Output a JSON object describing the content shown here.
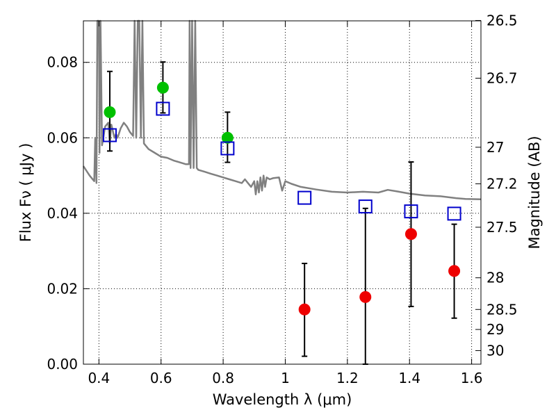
{
  "chart_data": {
    "type": "scatter",
    "title": "",
    "xlabel": "Wavelength  λ (μm)",
    "ylabel": "Flux  Fν  ( μJy )",
    "ylabel_right": "Magnitude (AB)",
    "xlim": [
      0.35,
      1.63
    ],
    "ylim": [
      0.0,
      0.091
    ],
    "grid": true,
    "x_ticks": [
      0.4,
      0.6,
      0.8,
      1.0,
      1.2,
      1.4,
      1.6
    ],
    "x_tick_labels": [
      "0.4",
      "0.6",
      "0.8",
      "1",
      "1.2",
      "1.4",
      "1.6"
    ],
    "y_ticks": [
      0.0,
      0.02,
      0.04,
      0.06,
      0.08
    ],
    "y_tick_labels": [
      "0.00",
      "0.02",
      "0.04",
      "0.06",
      "0.08"
    ],
    "right_ticks": [
      {
        "label": "26.5",
        "flux": 0.0911
      },
      {
        "label": "26.7",
        "flux": 0.0758
      },
      {
        "label": "27",
        "flux": 0.0575
      },
      {
        "label": "27.2",
        "flux": 0.0478
      },
      {
        "label": "27.5",
        "flux": 0.0363
      },
      {
        "label": "28",
        "flux": 0.0229
      },
      {
        "label": "28.5",
        "flux": 0.0145
      },
      {
        "label": "29",
        "flux": 0.0092
      },
      {
        "label": "30",
        "flux": 0.0036
      }
    ],
    "colors": {
      "green": "#00c000",
      "red": "#ee0000",
      "blue": "#0000cc",
      "sed": "#808080",
      "errorbar": "#000000"
    },
    "series": [
      {
        "marker": "circle-green",
        "points": [
          {
            "x": 0.435,
            "y": 0.0668,
            "yerr_low": 0.0565,
            "yerr_high": 0.0776
          },
          {
            "x": 0.606,
            "y": 0.0733,
            "yerr_low": 0.0666,
            "yerr_high": 0.0801
          },
          {
            "x": 0.814,
            "y": 0.06,
            "yerr_low": 0.0535,
            "yerr_high": 0.0668
          }
        ]
      },
      {
        "marker": "circle-red",
        "points": [
          {
            "x": 1.062,
            "y": 0.0145,
            "yerr_low": 0.0021,
            "yerr_high": 0.0267
          },
          {
            "x": 1.258,
            "y": 0.0178,
            "yerr_low": 0.0,
            "yerr_high": 0.0413
          },
          {
            "x": 1.405,
            "y": 0.0345,
            "yerr_low": 0.0153,
            "yerr_high": 0.0536
          },
          {
            "x": 1.544,
            "y": 0.0247,
            "yerr_low": 0.0122,
            "yerr_high": 0.0371
          }
        ]
      },
      {
        "marker": "square-blue",
        "points": [
          {
            "x": 0.435,
            "y": 0.0607
          },
          {
            "x": 0.606,
            "y": 0.0677
          },
          {
            "x": 0.814,
            "y": 0.0572
          },
          {
            "x": 1.062,
            "y": 0.0441
          },
          {
            "x": 1.258,
            "y": 0.0418
          },
          {
            "x": 1.405,
            "y": 0.0405
          },
          {
            "x": 1.544,
            "y": 0.0399
          }
        ]
      },
      {
        "marker": "line-gray",
        "points": [
          [
            0.35,
            0.0525
          ],
          [
            0.37,
            0.05
          ],
          [
            0.385,
            0.0485
          ],
          [
            0.388,
            0.06
          ],
          [
            0.392,
            0.048
          ],
          [
            0.395,
            0.091
          ],
          [
            0.4,
            0.091
          ],
          [
            0.402,
            0.056
          ],
          [
            0.405,
            0.091
          ],
          [
            0.41,
            0.058
          ],
          [
            0.42,
            0.063
          ],
          [
            0.43,
            0.064
          ],
          [
            0.435,
            0.0585
          ],
          [
            0.44,
            0.0635
          ],
          [
            0.45,
            0.06
          ],
          [
            0.455,
            0.061
          ],
          [
            0.46,
            0.06
          ],
          [
            0.47,
            0.0625
          ],
          [
            0.48,
            0.064
          ],
          [
            0.49,
            0.063
          ],
          [
            0.5,
            0.0615
          ],
          [
            0.51,
            0.0605
          ],
          [
            0.515,
            0.091
          ],
          [
            0.52,
            0.06
          ],
          [
            0.525,
            0.091
          ],
          [
            0.53,
            0.091
          ],
          [
            0.535,
            0.06
          ],
          [
            0.54,
            0.091
          ],
          [
            0.545,
            0.0585
          ],
          [
            0.56,
            0.057
          ],
          [
            0.58,
            0.056
          ],
          [
            0.6,
            0.055
          ],
          [
            0.62,
            0.0547
          ],
          [
            0.64,
            0.054
          ],
          [
            0.66,
            0.0535
          ],
          [
            0.68,
            0.053
          ],
          [
            0.69,
            0.053
          ],
          [
            0.692,
            0.091
          ],
          [
            0.695,
            0.052
          ],
          [
            0.7,
            0.091
          ],
          [
            0.705,
            0.052
          ],
          [
            0.71,
            0.091
          ],
          [
            0.715,
            0.052
          ],
          [
            0.72,
            0.0515
          ],
          [
            0.74,
            0.051
          ],
          [
            0.76,
            0.0505
          ],
          [
            0.78,
            0.05
          ],
          [
            0.8,
            0.0495
          ],
          [
            0.82,
            0.049
          ],
          [
            0.84,
            0.0485
          ],
          [
            0.86,
            0.048
          ],
          [
            0.87,
            0.049
          ],
          [
            0.88,
            0.048
          ],
          [
            0.89,
            0.047
          ],
          [
            0.9,
            0.0485
          ],
          [
            0.905,
            0.045
          ],
          [
            0.91,
            0.0485
          ],
          [
            0.915,
            0.0455
          ],
          [
            0.92,
            0.0495
          ],
          [
            0.925,
            0.046
          ],
          [
            0.93,
            0.05
          ],
          [
            0.935,
            0.047
          ],
          [
            0.94,
            0.0495
          ],
          [
            0.95,
            0.049
          ],
          [
            0.96,
            0.0493
          ],
          [
            0.98,
            0.0495
          ],
          [
            0.99,
            0.046
          ],
          [
            1.0,
            0.0485
          ],
          [
            1.02,
            0.0478
          ],
          [
            1.05,
            0.047
          ],
          [
            1.1,
            0.0463
          ],
          [
            1.15,
            0.0457
          ],
          [
            1.2,
            0.0455
          ],
          [
            1.25,
            0.0457
          ],
          [
            1.3,
            0.0455
          ],
          [
            1.33,
            0.0462
          ],
          [
            1.36,
            0.0458
          ],
          [
            1.4,
            0.0452
          ],
          [
            1.45,
            0.0447
          ],
          [
            1.5,
            0.0445
          ],
          [
            1.55,
            0.044
          ],
          [
            1.58,
            0.0438
          ],
          [
            1.63,
            0.0437
          ]
        ]
      }
    ]
  }
}
